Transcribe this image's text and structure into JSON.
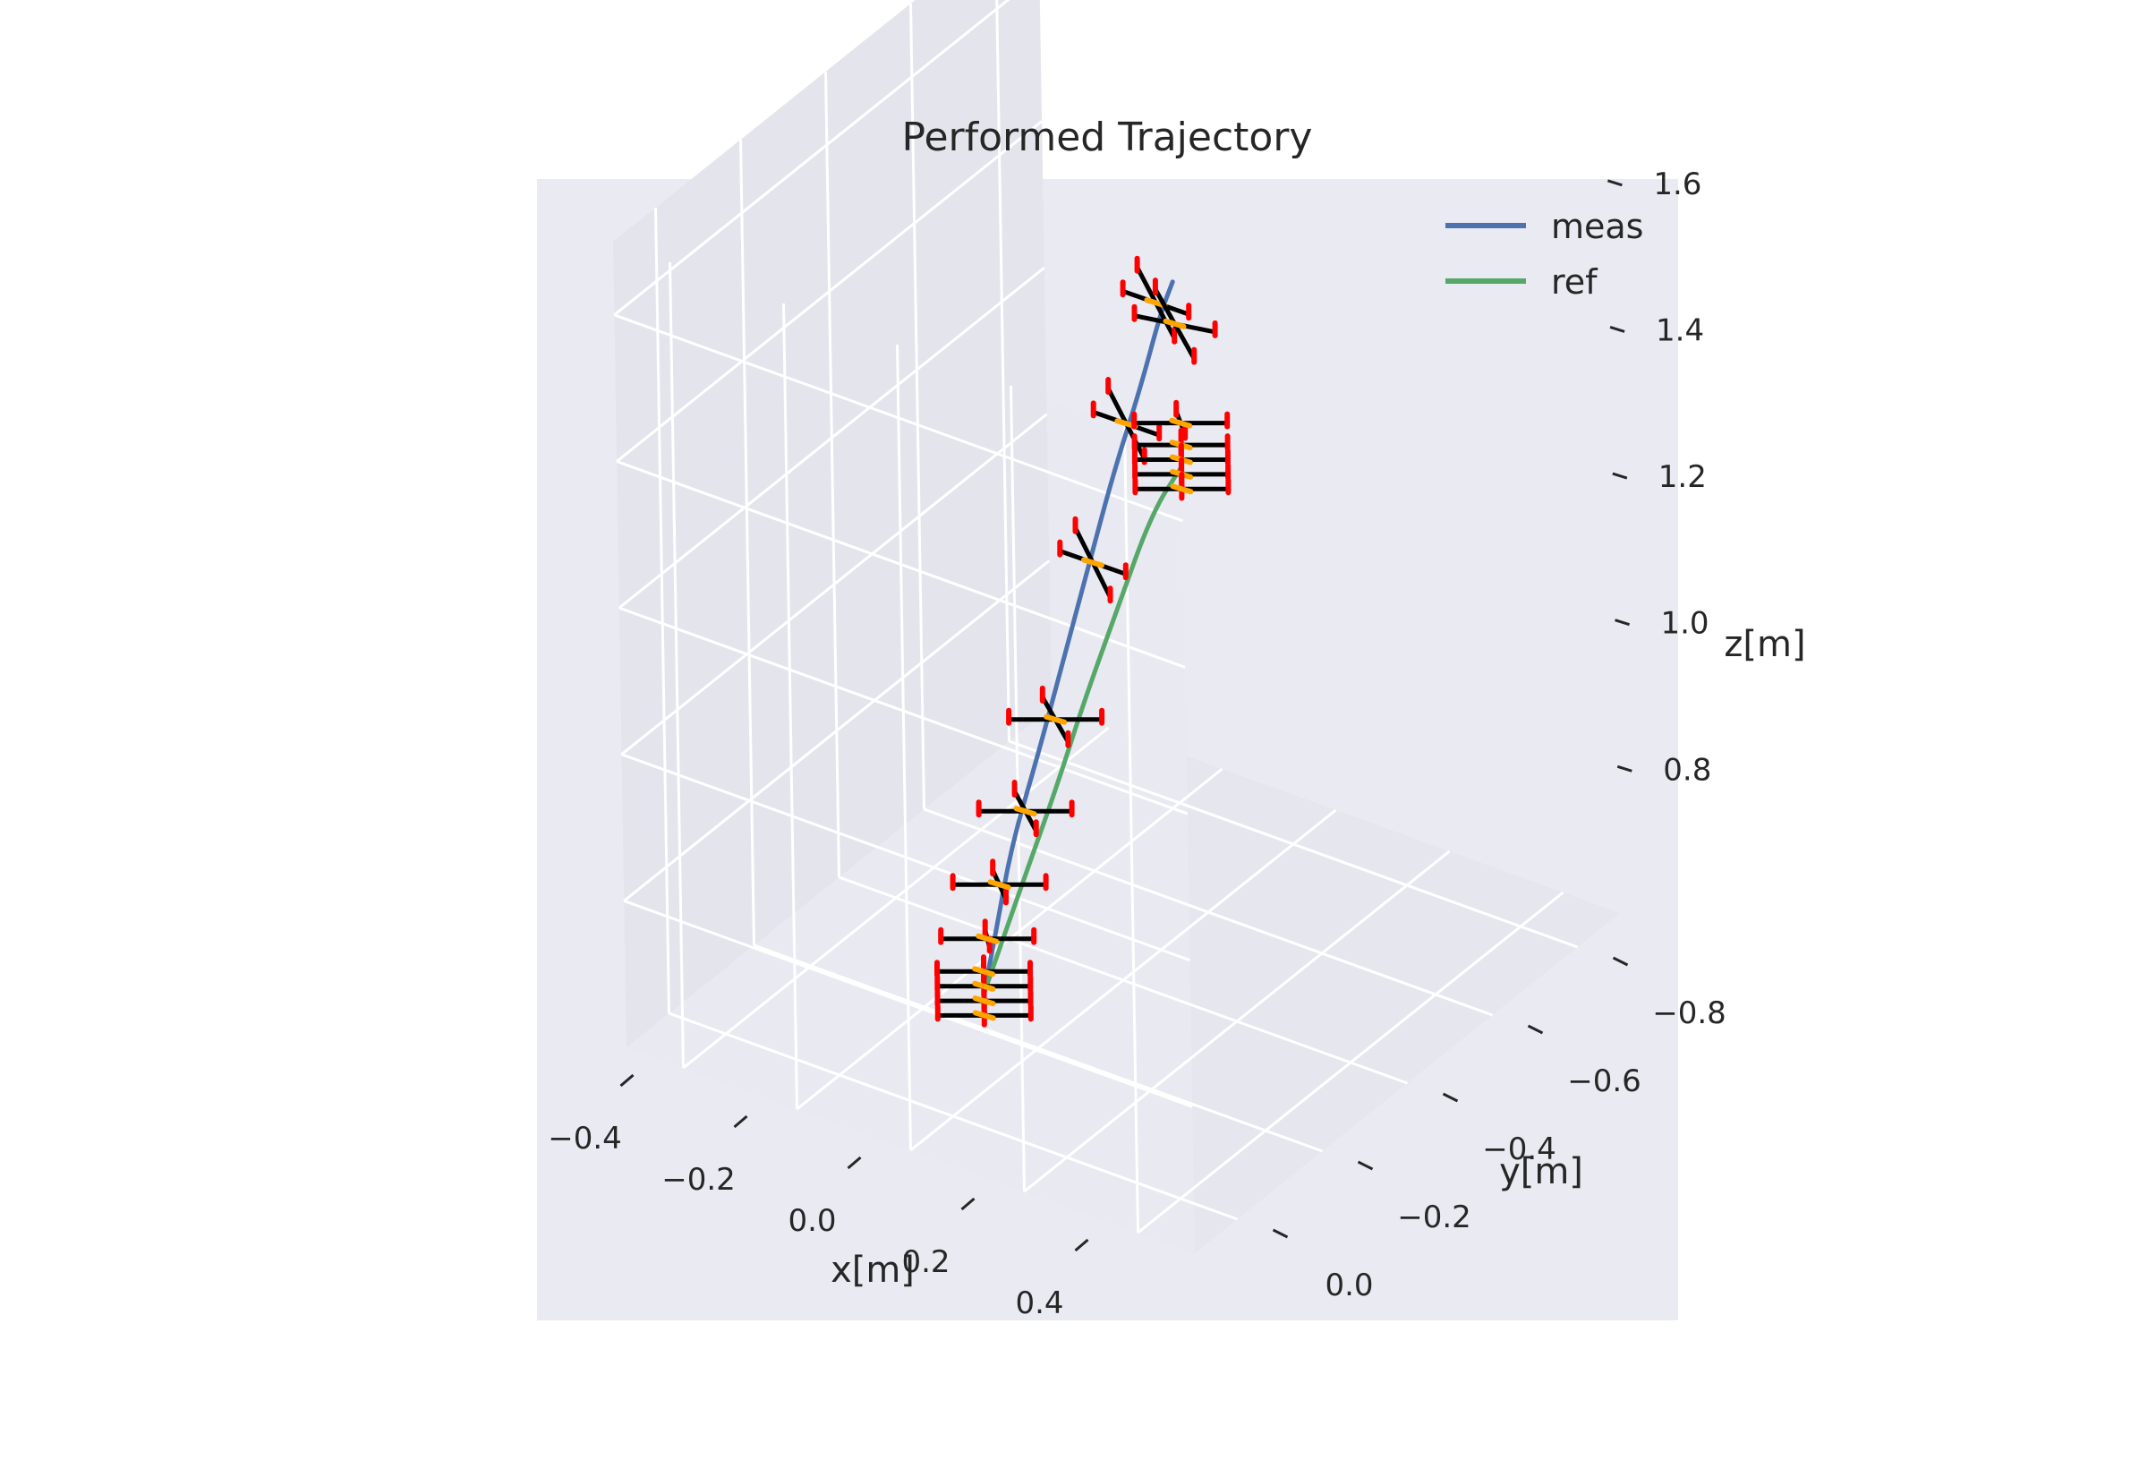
{
  "chart_data": {
    "type": "line",
    "projection": "3d",
    "title": "Performed Trajectory",
    "xlabel": "x[m]",
    "ylabel": "y[m]",
    "zlabel": "z[m]",
    "x_ticks": [
      "−0.4",
      "−0.2",
      "0.0",
      "0.2",
      "0.4"
    ],
    "y_ticks": [
      "0.0",
      "−0.2",
      "−0.4",
      "−0.6",
      "−0.8"
    ],
    "z_ticks": [
      "0.8",
      "1.0",
      "1.2",
      "1.4",
      "1.6"
    ],
    "xlim": [
      -0.5,
      0.5
    ],
    "ylim": [
      0.1,
      -0.9
    ],
    "zlim": [
      0.6,
      1.7
    ],
    "grid": true,
    "legend_position": "top-right",
    "series": [
      {
        "name": "meas",
        "color": "#4c72b0",
        "x": [
          0.02,
          0.02,
          0.02,
          0.03,
          0.04,
          0.05,
          0.06,
          0.07,
          0.07,
          0.07
        ],
        "y": [
          -0.05,
          -0.08,
          -0.12,
          -0.17,
          -0.22,
          -0.27,
          -0.32,
          -0.37,
          -0.42,
          -0.45
        ],
        "z": [
          0.75,
          0.82,
          0.92,
          1.02,
          1.13,
          1.24,
          1.35,
          1.44,
          1.52,
          1.55
        ]
      },
      {
        "name": "ref",
        "color": "#55a868",
        "x": [
          0.02,
          0.03,
          0.04,
          0.05,
          0.06,
          0.07,
          0.08,
          0.08
        ],
        "y": [
          -0.05,
          -0.09,
          -0.14,
          -0.19,
          -0.24,
          -0.31,
          -0.38,
          -0.45
        ],
        "z": [
          0.75,
          0.82,
          0.9,
          0.98,
          1.07,
          1.17,
          1.27,
          1.3
        ]
      }
    ],
    "drone_markers": {
      "arm_color": "#000000",
      "rotor_color": "#ff0000",
      "hub_color": "#ffa500",
      "poses": [
        {
          "x": 0.02,
          "y": -0.05,
          "z": 0.72,
          "roll": 0,
          "yaw": 0
        },
        {
          "x": 0.02,
          "y": -0.05,
          "z": 0.74,
          "roll": 0,
          "yaw": 0
        },
        {
          "x": 0.02,
          "y": -0.05,
          "z": 0.76,
          "roll": 0,
          "yaw": 0
        },
        {
          "x": 0.02,
          "y": -0.05,
          "z": 0.78,
          "roll": 0,
          "yaw": 0
        },
        {
          "x": 0.02,
          "y": -0.06,
          "z": 0.82,
          "roll": 5,
          "yaw": 0
        },
        {
          "x": 0.02,
          "y": -0.09,
          "z": 0.88,
          "roll": 15,
          "yaw": 0
        },
        {
          "x": 0.03,
          "y": -0.14,
          "z": 0.96,
          "roll": 25,
          "yaw": 0
        },
        {
          "x": 0.04,
          "y": -0.2,
          "z": 1.06,
          "roll": 30,
          "yaw": 0
        },
        {
          "x": 0.05,
          "y": -0.28,
          "z": 1.24,
          "roll": 70,
          "yaw": 45
        },
        {
          "x": 0.06,
          "y": -0.35,
          "z": 1.4,
          "roll": 75,
          "yaw": 45
        },
        {
          "x": 0.07,
          "y": -0.41,
          "z": 1.54,
          "roll": 80,
          "yaw": 45
        },
        {
          "x": 0.08,
          "y": -0.44,
          "z": 1.5,
          "roll": 70,
          "yaw": 30
        },
        {
          "x": 0.08,
          "y": -0.45,
          "z": 1.36,
          "roll": 10,
          "yaw": 0
        },
        {
          "x": 0.08,
          "y": -0.45,
          "z": 1.33,
          "roll": 0,
          "yaw": 0
        },
        {
          "x": 0.08,
          "y": -0.45,
          "z": 1.31,
          "roll": 0,
          "yaw": 0
        },
        {
          "x": 0.08,
          "y": -0.45,
          "z": 1.29,
          "roll": 0,
          "yaw": 0
        },
        {
          "x": 0.08,
          "y": -0.45,
          "z": 1.27,
          "roll": 0,
          "yaw": 0
        }
      ]
    }
  }
}
